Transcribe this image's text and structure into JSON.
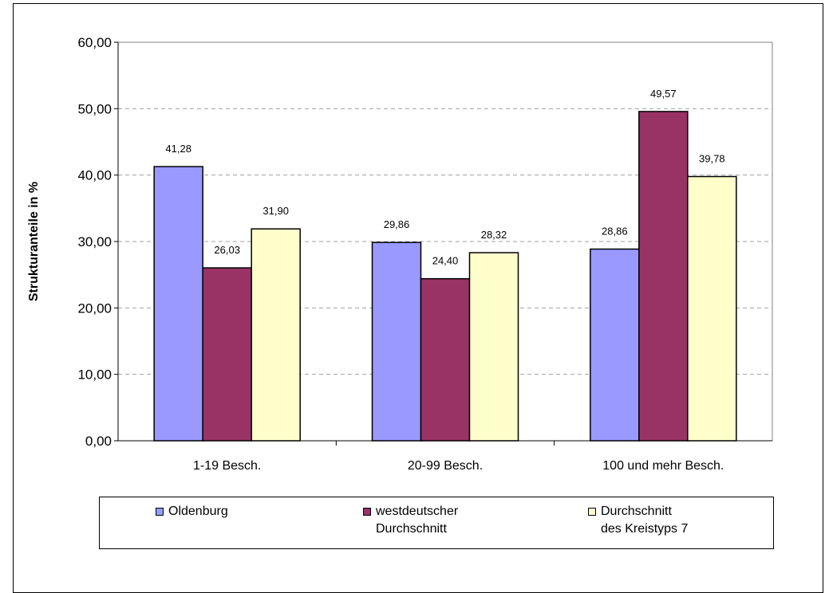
{
  "chart_data": {
    "type": "bar",
    "categories": [
      "1-19 Besch.",
      "20-99 Besch.",
      "100 und mehr Besch."
    ],
    "series": [
      {
        "name": "Oldenburg",
        "values": [
          41.28,
          29.86,
          28.86
        ],
        "labels": [
          "41,28",
          "29,86",
          "28,86"
        ],
        "color": "#9999ff"
      },
      {
        "name": "westdeutscher\nDurchschnitt",
        "values": [
          26.03,
          24.4,
          49.57
        ],
        "labels": [
          "26,03",
          "24,40",
          "49,57"
        ],
        "color": "#993366"
      },
      {
        "name": "Durchschnitt\ndes Kreistyps 7",
        "values": [
          31.9,
          28.32,
          39.78
        ],
        "labels": [
          "31,90",
          "28,32",
          "39,78"
        ],
        "color": "#ffffcc"
      }
    ],
    "ylabel": "Strukturanteile in %",
    "ylim": [
      0,
      60
    ],
    "yticks": [
      "0,00",
      "10,00",
      "20,00",
      "30,00",
      "40,00",
      "50,00",
      "60,00"
    ],
    "grid": true,
    "legend": "bottom"
  }
}
